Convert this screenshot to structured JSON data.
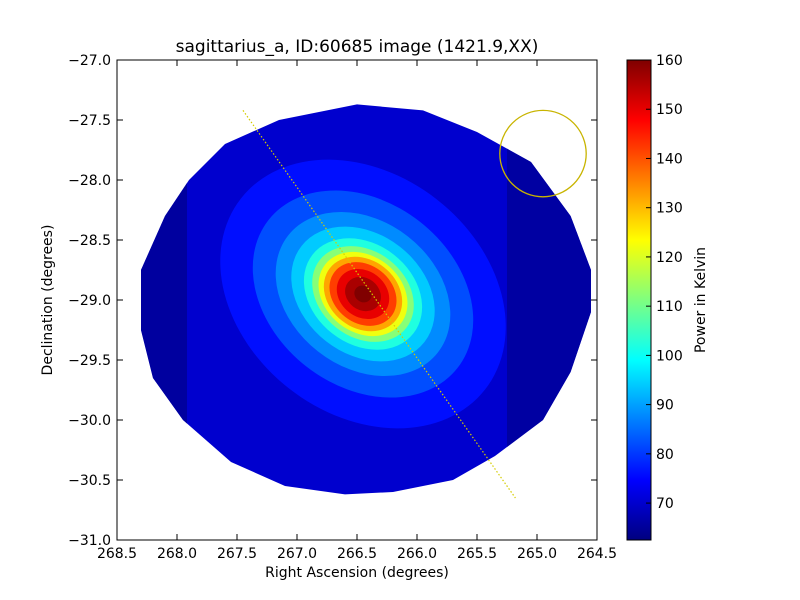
{
  "chart_data": {
    "type": "heatmap",
    "title": "sagittarius_a, ID:60685 image (1421.9,XX)",
    "xlabel": "Right Ascension (degrees)",
    "ylabel": "Declination (degrees)",
    "xlim": [
      268.5,
      264.5
    ],
    "ylim": [
      -31.0,
      -27.0
    ],
    "x_ticks": [
      "268.5",
      "268.0",
      "267.5",
      "267.0",
      "266.5",
      "266.0",
      "265.5",
      "265.0",
      "264.5"
    ],
    "y_ticks": [
      "−27.0",
      "−27.5",
      "−28.0",
      "−28.5",
      "−29.0",
      "−29.5",
      "−30.0",
      "−30.5",
      "−31.0"
    ],
    "grid": false,
    "colorbar": {
      "label": "Power in Kelvin",
      "colormap": "jet",
      "range": [
        62.5,
        160
      ],
      "ticks": [
        "160",
        "150",
        "140",
        "130",
        "120",
        "110",
        "100",
        "90",
        "80",
        "70"
      ]
    },
    "map": {
      "peak_kelvin": 160,
      "peak_ra": 266.45,
      "peak_dec": -28.95,
      "floor_kelvin": 63,
      "coverage_polygon_radec": [
        [
          266.5,
          -27.37
        ],
        [
          265.95,
          -27.42
        ],
        [
          265.5,
          -27.6
        ],
        [
          265.05,
          -27.85
        ],
        [
          264.72,
          -28.3
        ],
        [
          264.55,
          -28.75
        ],
        [
          264.55,
          -29.1
        ],
        [
          264.72,
          -29.6
        ],
        [
          264.95,
          -30.0
        ],
        [
          265.35,
          -30.3
        ],
        [
          265.7,
          -30.5
        ],
        [
          266.2,
          -30.6
        ],
        [
          266.6,
          -30.62
        ],
        [
          267.1,
          -30.55
        ],
        [
          267.55,
          -30.35
        ],
        [
          267.95,
          -30.0
        ],
        [
          268.2,
          -29.65
        ],
        [
          268.3,
          -29.25
        ],
        [
          268.3,
          -28.75
        ],
        [
          268.1,
          -28.3
        ],
        [
          267.9,
          -28.0
        ],
        [
          267.6,
          -27.7
        ],
        [
          267.15,
          -27.5
        ]
      ]
    },
    "overlays": {
      "line": {
        "color": "#d4cc00",
        "style": "dotted",
        "points": [
          [
            267.45,
            -27.42
          ],
          [
            265.18,
            -30.65
          ]
        ]
      },
      "circle": {
        "color": "#c8b400",
        "center": [
          264.95,
          -27.78
        ],
        "radius_ra_deg": 0.36
      }
    }
  }
}
